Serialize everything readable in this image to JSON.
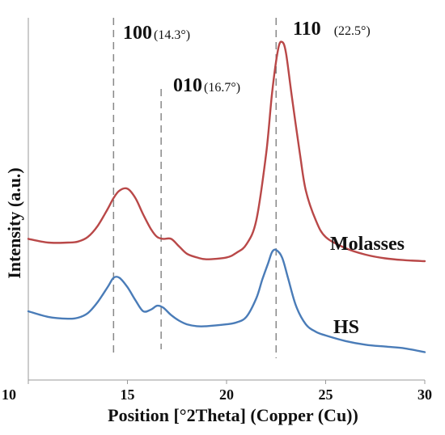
{
  "chart_data": {
    "type": "line",
    "xlabel": "Position [°2Theta] (Copper (Cu))",
    "ylabel": "Intensity (a.u.)",
    "xlim": [
      10,
      30
    ],
    "x_ticks": [
      "10",
      "15",
      "20",
      "25",
      "30"
    ],
    "y_ticks_shown": false,
    "grid": false,
    "series": [
      {
        "name": "Molasses",
        "color": "#b94848",
        "x": [
          10,
          11,
          12,
          12.5,
          13,
          13.5,
          14,
          14.3,
          14.6,
          15,
          15.4,
          15.8,
          16.2,
          16.5,
          16.8,
          17.2,
          17.6,
          18,
          18.5,
          19,
          20,
          20.5,
          21,
          21.5,
          22,
          22.3,
          22.6,
          22.8,
          23,
          23.3,
          23.7,
          24,
          24.5,
          25,
          26,
          27,
          28,
          29,
          30
        ],
        "y": [
          0.76,
          0.74,
          0.74,
          0.745,
          0.77,
          0.83,
          0.92,
          0.98,
          1.02,
          1.03,
          0.98,
          0.89,
          0.81,
          0.77,
          0.76,
          0.76,
          0.72,
          0.68,
          0.66,
          0.65,
          0.66,
          0.685,
          0.73,
          0.86,
          1.22,
          1.55,
          1.78,
          1.82,
          1.76,
          1.52,
          1.22,
          1.02,
          0.86,
          0.77,
          0.71,
          0.675,
          0.655,
          0.645,
          0.64
        ]
      },
      {
        "name": "HS",
        "color": "#4a7cb8",
        "x": [
          10,
          11,
          12,
          12.5,
          13,
          13.5,
          14,
          14.3,
          14.6,
          15,
          15.4,
          15.8,
          16.2,
          16.5,
          16.8,
          17.2,
          17.6,
          18,
          18.5,
          19,
          20,
          20.5,
          21,
          21.5,
          21.8,
          22.1,
          22.3,
          22.5,
          22.8,
          23.1,
          23.5,
          24,
          24.5,
          25,
          26,
          27,
          28,
          29,
          30
        ],
        "y": [
          0.37,
          0.34,
          0.33,
          0.335,
          0.36,
          0.42,
          0.5,
          0.55,
          0.55,
          0.5,
          0.43,
          0.37,
          0.38,
          0.4,
          0.39,
          0.35,
          0.32,
          0.3,
          0.29,
          0.29,
          0.3,
          0.31,
          0.34,
          0.44,
          0.54,
          0.63,
          0.69,
          0.7,
          0.66,
          0.55,
          0.4,
          0.3,
          0.26,
          0.24,
          0.21,
          0.19,
          0.18,
          0.17,
          0.15
        ]
      }
    ],
    "reference_lines": [
      {
        "x": 14.3,
        "label_main": "100",
        "label_sub": "(14.3°)"
      },
      {
        "x": 16.7,
        "label_main": "010",
        "label_sub": "(16.7°)"
      },
      {
        "x": 22.5,
        "label_main": "110",
        "label_sub": "(22.5°)"
      }
    ]
  }
}
